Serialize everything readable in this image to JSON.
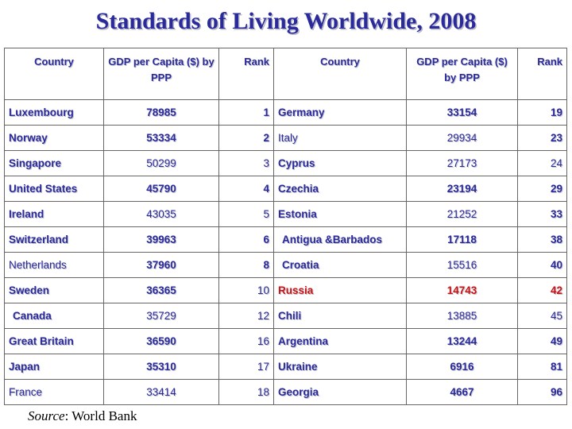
{
  "title": "Standards of Living Worldwide, 2008",
  "headers": {
    "country": "Country",
    "gdp": "GDP per Capita ($) by PPP",
    "rank": "Rank"
  },
  "rows": [
    {
      "c1": "Luxembourg",
      "g1": "78985",
      "r1": "1",
      "c2": "Germany",
      "g2": "33154",
      "r2": "19"
    },
    {
      "c1": "Norway",
      "g1": "53334",
      "r1": "2",
      "c2": "Italy",
      "g2": "29934",
      "r2": "23"
    },
    {
      "c1": "Singapore",
      "g1": "50299",
      "r1": "3",
      "c2": "Cyprus",
      "g2": "27173",
      "r2": "24"
    },
    {
      "c1": "United States",
      "g1": "45790",
      "r1": "4",
      "c2": "Czechia",
      "g2": "23194",
      "r2": "29"
    },
    {
      "c1": "Ireland",
      "g1": "43035",
      "r1": "5",
      "c2": "Estonia",
      "g2": "21252",
      "r2": "33"
    },
    {
      "c1": "Switzerland",
      "g1": "39963",
      "r1": "6",
      "c2": "Antigua &Barbados",
      "g2": "17118",
      "r2": "38"
    },
    {
      "c1": "Netherlands",
      "g1": "37960",
      "r1": "8",
      "c2": "Croatia",
      "g2": "15516",
      "r2": "40"
    },
    {
      "c1": "Sweden",
      "g1": "36365",
      "r1": "10",
      "c2": "Russia",
      "g2": "14743",
      "r2": "42"
    },
    {
      "c1": "Canada",
      "g1": "35729",
      "r1": "12",
      "c2": "Chili",
      "g2": "13885",
      "r2": "45"
    },
    {
      "c1": "Great Britain",
      "g1": "36590",
      "r1": "16",
      "c2": "Argentina",
      "g2": "13244",
      "r2": "49"
    },
    {
      "c1": "Japan",
      "g1": "35310",
      "r1": "17",
      "c2": "Ukraine",
      "g2": "6916",
      "r2": "81"
    },
    {
      "c1": "France",
      "g1": "33414",
      "r1": "18",
      "c2": "Georgia",
      "g2": "4667",
      "r2": "96"
    }
  ],
  "source": {
    "label": "Source",
    "text": ": World Bank"
  },
  "colors": {
    "text": "#2a2a9a",
    "highlight": "#c81414"
  }
}
